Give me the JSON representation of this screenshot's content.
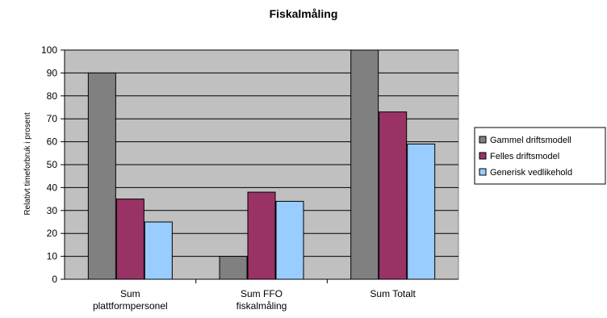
{
  "chart_data": {
    "type": "bar",
    "title": "Fiskalmåling",
    "xlabel": "",
    "ylabel": "Relativt timeforbruk i prosent",
    "ylim": [
      0,
      100
    ],
    "yticks": [
      0,
      10,
      20,
      30,
      40,
      50,
      60,
      70,
      80,
      90,
      100
    ],
    "grid": true,
    "legend_position": "right",
    "plot_background": "#c0c0c0",
    "categories": [
      [
        "Sum",
        "plattformpersonel"
      ],
      [
        "Sum FFO",
        "fiskalmåling"
      ],
      [
        "Sum Totalt"
      ]
    ],
    "series": [
      {
        "name": "Gammel driftsmodell",
        "color": "#808080",
        "values": [
          90,
          10,
          100
        ]
      },
      {
        "name": "Felles driftsmodel",
        "color": "#993366",
        "values": [
          35,
          38,
          73
        ]
      },
      {
        "name": "Generisk vedlikehold",
        "color": "#99ccff",
        "values": [
          25,
          34,
          59
        ]
      }
    ]
  }
}
